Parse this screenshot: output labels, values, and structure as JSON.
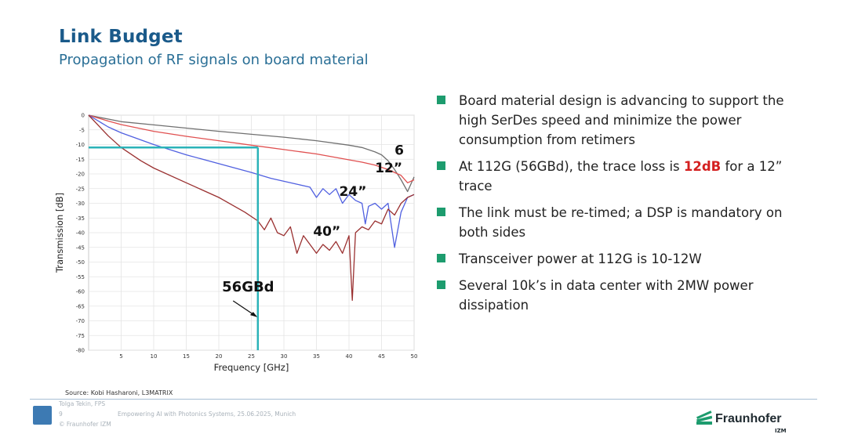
{
  "slide": {
    "title": "Link Budget",
    "subtitle": "Propagation of RF signals on board material"
  },
  "bullets": [
    {
      "text": "Board material design is advancing to support the high SerDes speed and minimize the power consumption from retimers"
    },
    {
      "pre": "At 112G (56GBd), the trace loss is ",
      "highlight": "12dB",
      "post": " for a 12” trace"
    },
    {
      "text": "The link must be re-timed; a DSP is mandatory on both sides"
    },
    {
      "text": "Transceiver power at 112G is 10-12W"
    },
    {
      "text": "Several 10k’s in data center with 2MW power dissipation"
    }
  ],
  "source": "Source: Kobi Hasharoni, L3MATRIX",
  "footer": {
    "author": "Tolga Tekin, FPS",
    "page": "9",
    "event": "Empowering AI with Photonics Systems, 25.06.2025, Munich",
    "copyright": "© Fraunhofer IZM",
    "logo_name": "Fraunhofer",
    "logo_sub": "IZM"
  },
  "colors": {
    "accent": "#1a5a8a",
    "bullet": "#1d9c6e",
    "highlight": "#d42020",
    "marker": "#2bb3b8"
  },
  "chart_data": {
    "type": "line",
    "xlabel": "Frequency [GHz]",
    "ylabel": "Transmission [dB]",
    "xlim": [
      0,
      50
    ],
    "ylim": [
      -80,
      0
    ],
    "xticks": [
      5,
      10,
      15,
      20,
      25,
      30,
      35,
      40,
      45,
      50
    ],
    "yticks": [
      0,
      -5,
      -10,
      -15,
      -20,
      -25,
      -30,
      -35,
      -40,
      -45,
      -50,
      -55,
      -60,
      -65,
      -70,
      -75,
      -80
    ],
    "grid": true,
    "series": [
      {
        "name": "6",
        "color": "#707070",
        "x": [
          0,
          5,
          10,
          15,
          20,
          25,
          30,
          35,
          40,
          42,
          44,
          45,
          46,
          47,
          48,
          49,
          50
        ],
        "y": [
          0,
          -2.2,
          -3.3,
          -4.4,
          -5.5,
          -6.5,
          -7.5,
          -8.7,
          -10.2,
          -11,
          -12.5,
          -13.5,
          -15.5,
          -18.5,
          -22,
          -26,
          -21
        ]
      },
      {
        "name": "12”",
        "color": "#e05050",
        "x": [
          0,
          3,
          5,
          10,
          15,
          20,
          25,
          30,
          35,
          40,
          42,
          44,
          46,
          47,
          48,
          49,
          50
        ],
        "y": [
          0,
          -2,
          -3.2,
          -5.5,
          -7.2,
          -8.7,
          -10.2,
          -11.7,
          -13.2,
          -15.2,
          -16,
          -17,
          -18.5,
          -19.5,
          -20.5,
          -23,
          -22
        ]
      },
      {
        "name": "24”",
        "color": "#5060e0",
        "x": [
          0,
          3,
          5,
          10,
          15,
          20,
          25,
          28,
          30,
          32,
          34,
          35,
          36,
          37,
          38,
          39,
          40,
          41,
          42,
          42.5,
          43,
          44,
          45,
          46,
          47,
          48,
          49,
          50
        ],
        "y": [
          0,
          -4,
          -6,
          -10,
          -13.5,
          -16.5,
          -19.5,
          -21.5,
          -22.5,
          -23.5,
          -24.5,
          -28,
          -25,
          -27,
          -25,
          -30,
          -27,
          -29,
          -30,
          -37,
          -31,
          -30,
          -32,
          -30,
          -45,
          -33,
          -28,
          -27
        ]
      },
      {
        "name": "40”",
        "color": "#9a3030",
        "x": [
          0,
          3,
          5,
          8,
          10,
          15,
          20,
          24,
          26,
          27,
          28,
          29,
          30,
          31,
          32,
          33,
          34,
          35,
          36,
          37,
          38,
          39,
          40,
          40.5,
          41,
          42,
          43,
          44,
          45,
          46,
          47,
          48,
          49,
          50
        ],
        "y": [
          0,
          -7,
          -11,
          -15.5,
          -18,
          -23,
          -28,
          -33,
          -36,
          -39,
          -35,
          -40,
          -41,
          -38,
          -47,
          -41,
          -44,
          -47,
          -44,
          -46,
          -43,
          -47,
          -41,
          -63,
          -40,
          -38,
          -39,
          -36,
          -37,
          -32,
          -34,
          -30,
          -28,
          -27
        ]
      }
    ],
    "annotations": [
      {
        "text": "6",
        "x": 47,
        "y": -13.5
      },
      {
        "text": "12”",
        "x": 44,
        "y": -19.5
      },
      {
        "text": "24”",
        "x": 38.5,
        "y": -27.5
      },
      {
        "text": "40”",
        "x": 34.5,
        "y": -41
      },
      {
        "text": "56GBd",
        "x": 20.5,
        "y": -60
      }
    ],
    "marker": {
      "x": 26,
      "y": -11
    }
  }
}
